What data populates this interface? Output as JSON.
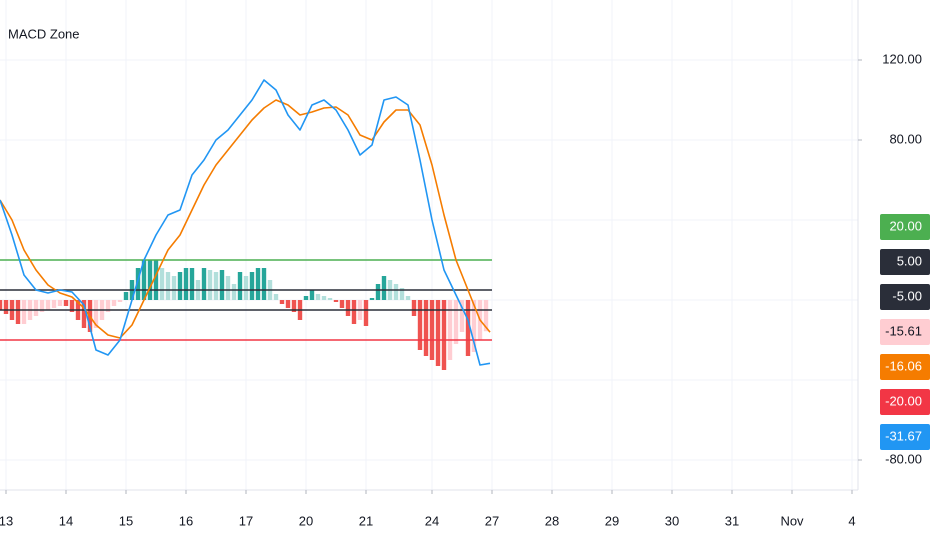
{
  "chart_data": {
    "type": "line",
    "title": "MACD Zone",
    "xlim": [
      0,
      143
    ],
    "ylim": [
      -95,
      150
    ],
    "xticks": [
      {
        "value": 1,
        "label": "13"
      },
      {
        "value": 11,
        "label": "14"
      },
      {
        "value": 21,
        "label": "15"
      },
      {
        "value": 31,
        "label": "16"
      },
      {
        "value": 41,
        "label": "17"
      },
      {
        "value": 51,
        "label": "20"
      },
      {
        "value": 61,
        "label": "21"
      },
      {
        "value": 72,
        "label": "24"
      },
      {
        "value": 82,
        "label": "27"
      },
      {
        "value": 92,
        "label": "28"
      },
      {
        "value": 102,
        "label": "29"
      },
      {
        "value": 112,
        "label": "30"
      },
      {
        "value": 122,
        "label": "31"
      },
      {
        "value": 132,
        "label": "Nov"
      },
      {
        "value": 142,
        "label": "4"
      }
    ],
    "yticks": [
      {
        "value": 120,
        "label": "120.00"
      },
      {
        "value": 80,
        "label": "80.00"
      },
      {
        "value": -80,
        "label": "-80.00"
      }
    ],
    "ygrid": [
      120,
      80,
      40,
      0,
      -40,
      -80
    ],
    "grid": true,
    "levels": [
      {
        "value": 20,
        "label": "20.00",
        "color": "#4caf50"
      },
      {
        "value": 5,
        "label": "5.00",
        "color": "#2a2e39"
      },
      {
        "value": -5,
        "label": "-5.00",
        "color": "#2a2e39"
      },
      {
        "value": -20,
        "label": "-20.00",
        "color": "#f23645"
      }
    ],
    "histogram": {
      "last_label": "-15.61",
      "label_color": "#ffcdd2",
      "x": [
        0,
        1,
        2,
        3,
        4,
        5,
        6,
        7,
        8,
        9,
        10,
        11,
        12,
        13,
        14,
        15,
        16,
        17,
        18,
        19,
        20,
        21,
        22,
        23,
        24,
        25,
        26,
        27,
        28,
        29,
        30,
        31,
        32,
        33,
        34,
        35,
        36,
        37,
        38,
        39,
        40,
        41,
        42,
        43,
        44,
        45,
        46,
        47,
        48,
        49,
        50,
        51,
        52,
        53,
        54,
        55,
        56,
        57,
        58,
        59,
        60,
        61,
        62,
        63,
        64,
        65,
        66,
        67,
        68,
        69,
        70,
        71,
        72,
        73,
        74,
        75,
        76,
        77,
        78,
        79,
        80,
        81
      ],
      "values": [
        -5,
        -7,
        -10,
        -12,
        -12,
        -10,
        -8,
        -6,
        -5,
        -4,
        -3,
        -3,
        -6,
        -10,
        -14,
        -16,
        -14,
        -10,
        -6,
        -3,
        -1,
        4,
        10,
        16,
        20,
        20,
        20,
        16,
        14,
        12,
        14,
        16,
        16,
        10,
        16,
        15,
        14,
        15,
        12,
        8,
        14,
        12,
        14,
        16,
        16,
        10,
        3,
        -2,
        -4,
        -6,
        -10,
        2,
        5,
        3,
        2,
        1,
        -1,
        -4,
        -8,
        -12,
        -10,
        -13,
        1,
        8,
        12,
        10,
        8,
        6,
        2,
        -8,
        -25,
        -28,
        -30,
        -33,
        -35,
        -30,
        -22,
        -16,
        -28,
        -26,
        -20,
        -15.61
      ],
      "colors": [
        "#ef5350",
        "#ef5350",
        "#ef5350",
        "#ef5350",
        "#ffcdd2",
        "#ffcdd2",
        "#ffcdd2",
        "#ffcdd2",
        "#ffcdd2",
        "#ffcdd2",
        "#ffcdd2",
        "#ef5350",
        "#ef5350",
        "#ef5350",
        "#ef5350",
        "#ef5350",
        "#ffcdd2",
        "#ffcdd2",
        "#ffcdd2",
        "#ffcdd2",
        "#ffcdd2",
        "#26a69a",
        "#26a69a",
        "#26a69a",
        "#26a69a",
        "#26a69a",
        "#26a69a",
        "#b2dfdb",
        "#b2dfdb",
        "#b2dfdb",
        "#26a69a",
        "#26a69a",
        "#26a69a",
        "#b2dfdb",
        "#26a69a",
        "#b2dfdb",
        "#b2dfdb",
        "#26a69a",
        "#b2dfdb",
        "#b2dfdb",
        "#26a69a",
        "#b2dfdb",
        "#26a69a",
        "#26a69a",
        "#26a69a",
        "#b2dfdb",
        "#b2dfdb",
        "#ef5350",
        "#ef5350",
        "#ef5350",
        "#ef5350",
        "#26a69a",
        "#26a69a",
        "#b2dfdb",
        "#b2dfdb",
        "#b2dfdb",
        "#ef5350",
        "#ef5350",
        "#ef5350",
        "#ef5350",
        "#ffcdd2",
        "#ef5350",
        "#26a69a",
        "#26a69a",
        "#26a69a",
        "#b2dfdb",
        "#b2dfdb",
        "#b2dfdb",
        "#b2dfdb",
        "#ef5350",
        "#ef5350",
        "#ef5350",
        "#ef5350",
        "#ef5350",
        "#ef5350",
        "#ffcdd2",
        "#ffcdd2",
        "#ffcdd2",
        "#ef5350",
        "#ffcdd2",
        "#ffcdd2",
        "#ffcdd2"
      ]
    },
    "series": [
      {
        "color": "#f57c00",
        "last_label": "-16.06",
        "x": [
          0,
          2,
          4,
          6,
          8,
          10,
          12,
          14,
          16,
          18,
          20,
          22,
          24,
          26,
          28,
          30,
          32,
          34,
          36,
          38,
          40,
          42,
          44,
          46,
          48,
          50,
          52,
          54,
          56,
          58,
          60,
          62,
          64,
          66,
          68,
          70,
          72,
          74,
          76,
          78,
          80,
          81.67
        ],
        "values": [
          50,
          40,
          25,
          15,
          7.5,
          3.5,
          1.5,
          -4,
          -12.5,
          -17.5,
          -19,
          -12.5,
          0,
          12.5,
          25,
          32.5,
          45,
          57.5,
          67.5,
          75,
          82.5,
          90,
          96,
          100,
          97.5,
          92.5,
          94,
          96,
          96.5,
          92.5,
          82.5,
          80,
          89,
          95,
          95,
          87.5,
          67.5,
          42.5,
          20,
          5,
          -10,
          -16.06
        ]
      },
      {
        "color": "#2196f3",
        "last_label": "-31.67",
        "x": [
          0,
          2,
          4,
          6,
          8,
          10,
          12,
          14,
          16,
          18,
          20,
          22,
          24,
          26,
          28,
          30,
          32,
          34,
          36,
          38,
          40,
          42,
          44,
          46,
          48,
          50,
          52,
          54,
          56,
          58,
          60,
          62,
          64,
          66,
          68,
          70,
          72,
          74,
          76,
          78,
          80,
          81.67
        ],
        "values": [
          50,
          32.5,
          12.5,
          5,
          3.5,
          5,
          4,
          -2.5,
          -25,
          -27.5,
          -20,
          0,
          20,
          32.5,
          42.5,
          45,
          62.5,
          70,
          80,
          85,
          92.5,
          100,
          110,
          105,
          92.5,
          85,
          97.5,
          100,
          95,
          85,
          72.5,
          77.5,
          100,
          101.5,
          97.5,
          70,
          40,
          15,
          2.5,
          -10,
          -32.5,
          -31.67
        ]
      }
    ]
  }
}
